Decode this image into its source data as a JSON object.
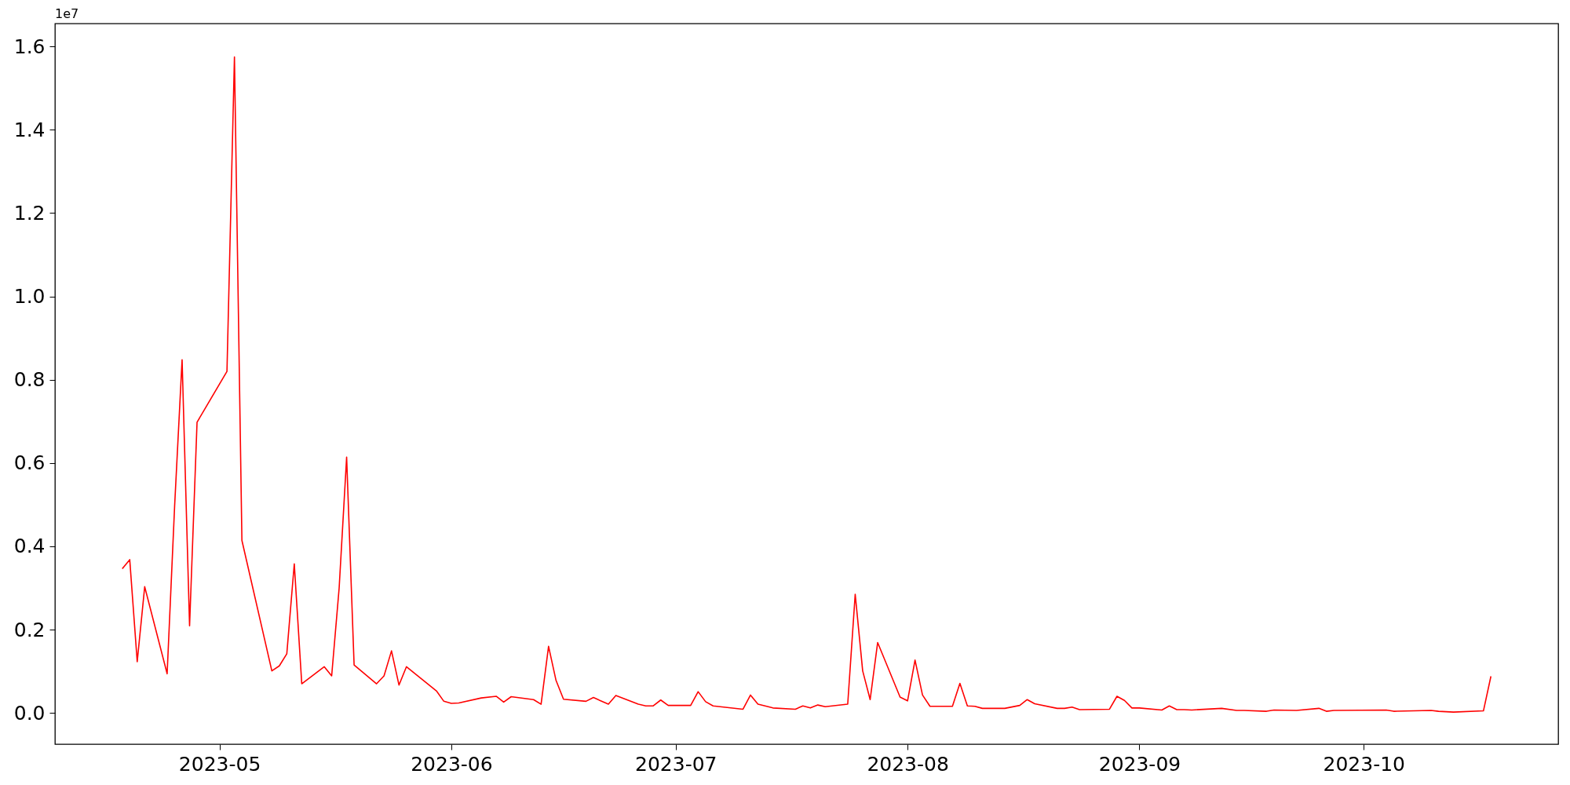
{
  "chart_data": {
    "type": "line",
    "color": "#ff0000",
    "x": [
      "2023-04-18",
      "2023-04-19",
      "2023-04-20",
      "2023-04-21",
      "2023-04-24",
      "2023-04-25",
      "2023-04-26",
      "2023-04-27",
      "2023-04-28",
      "2023-05-02",
      "2023-05-03",
      "2023-05-04",
      "2023-05-08",
      "2023-05-09",
      "2023-05-10",
      "2023-05-11",
      "2023-05-12",
      "2023-05-15",
      "2023-05-16",
      "2023-05-17",
      "2023-05-18",
      "2023-05-19",
      "2023-05-22",
      "2023-05-23",
      "2023-05-24",
      "2023-05-25",
      "2023-05-26",
      "2023-05-30",
      "2023-05-31",
      "2023-06-01",
      "2023-06-02",
      "2023-06-05",
      "2023-06-07",
      "2023-06-08",
      "2023-06-09",
      "2023-06-12",
      "2023-06-13",
      "2023-06-14",
      "2023-06-15",
      "2023-06-16",
      "2023-06-19",
      "2023-06-20",
      "2023-06-22",
      "2023-06-23",
      "2023-06-26",
      "2023-06-27",
      "2023-06-28",
      "2023-06-29",
      "2023-06-30",
      "2023-07-03",
      "2023-07-04",
      "2023-07-05",
      "2023-07-06",
      "2023-07-10",
      "2023-07-11",
      "2023-07-12",
      "2023-07-14",
      "2023-07-17",
      "2023-07-18",
      "2023-07-19",
      "2023-07-20",
      "2023-07-21",
      "2023-07-24",
      "2023-07-25",
      "2023-07-26",
      "2023-07-27",
      "2023-07-28",
      "2023-07-31",
      "2023-08-01",
      "2023-08-02",
      "2023-08-03",
      "2023-08-04",
      "2023-08-07",
      "2023-08-08",
      "2023-08-09",
      "2023-08-10",
      "2023-08-11",
      "2023-08-14",
      "2023-08-16",
      "2023-08-17",
      "2023-08-18",
      "2023-08-21",
      "2023-08-22",
      "2023-08-23",
      "2023-08-24",
      "2023-08-28",
      "2023-08-29",
      "2023-08-30",
      "2023-08-31",
      "2023-09-01",
      "2023-09-04",
      "2023-09-05",
      "2023-09-06",
      "2023-09-07",
      "2023-09-08",
      "2023-09-12",
      "2023-09-14",
      "2023-09-15",
      "2023-09-18",
      "2023-09-19",
      "2023-09-22",
      "2023-09-25",
      "2023-09-26",
      "2023-09-27",
      "2023-10-04",
      "2023-10-05",
      "2023-10-10",
      "2023-10-11",
      "2023-10-13",
      "2023-10-17",
      "2023-10-18"
    ],
    "values": [
      0.346,
      0.368,
      0.123,
      0.303,
      0.094,
      0.496,
      0.848,
      0.209,
      0.698,
      0.82,
      1.575,
      0.414,
      0.101,
      0.113,
      0.142,
      0.358,
      0.07,
      0.111,
      0.089,
      0.3,
      0.614,
      0.115,
      0.07,
      0.089,
      0.149,
      0.067,
      0.111,
      0.053,
      0.028,
      0.023,
      0.024,
      0.036,
      0.04,
      0.026,
      0.039,
      0.032,
      0.021,
      0.16,
      0.078,
      0.033,
      0.028,
      0.037,
      0.021,
      0.042,
      0.021,
      0.017,
      0.017,
      0.031,
      0.018,
      0.018,
      0.051,
      0.027,
      0.017,
      0.009,
      0.043,
      0.021,
      0.012,
      0.009,
      0.017,
      0.012,
      0.019,
      0.015,
      0.021,
      0.285,
      0.101,
      0.032,
      0.169,
      0.038,
      0.029,
      0.127,
      0.043,
      0.016,
      0.016,
      0.071,
      0.017,
      0.016,
      0.011,
      0.011,
      0.018,
      0.032,
      0.022,
      0.011,
      0.011,
      0.014,
      0.008,
      0.009,
      0.04,
      0.03,
      0.012,
      0.012,
      0.007,
      0.017,
      0.008,
      0.008,
      0.007,
      0.011,
      0.006,
      0.006,
      0.004,
      0.007,
      0.006,
      0.011,
      0.004,
      0.006,
      0.007,
      0.004,
      0.006,
      0.004,
      0.002,
      0.005,
      0.088
    ],
    "xlim": [
      "2023-04-09",
      "2023-10-27"
    ],
    "xticks": [
      {
        "value": "2023-05-01",
        "label": "2023-05"
      },
      {
        "value": "2023-06-01",
        "label": "2023-06"
      },
      {
        "value": "2023-07-01",
        "label": "2023-07"
      },
      {
        "value": "2023-08-01",
        "label": "2023-08"
      },
      {
        "value": "2023-09-01",
        "label": "2023-09"
      },
      {
        "value": "2023-10-01",
        "label": "2023-10"
      }
    ],
    "ylim": [
      -0.075,
      1.655
    ],
    "yticks": [
      {
        "value": 0,
        "label": "0.0"
      },
      {
        "value": 0.2,
        "label": "0.2"
      },
      {
        "value": 0.4,
        "label": "0.4"
      },
      {
        "value": 0.6,
        "label": "0.6"
      },
      {
        "value": 0.8,
        "label": "0.8"
      },
      {
        "value": 1,
        "label": "1.0"
      },
      {
        "value": 1.2,
        "label": "1.2"
      },
      {
        "value": 1.4,
        "label": "1.4"
      },
      {
        "value": 1.6,
        "label": "1.6"
      }
    ],
    "annotations": [
      "1e7"
    ]
  }
}
